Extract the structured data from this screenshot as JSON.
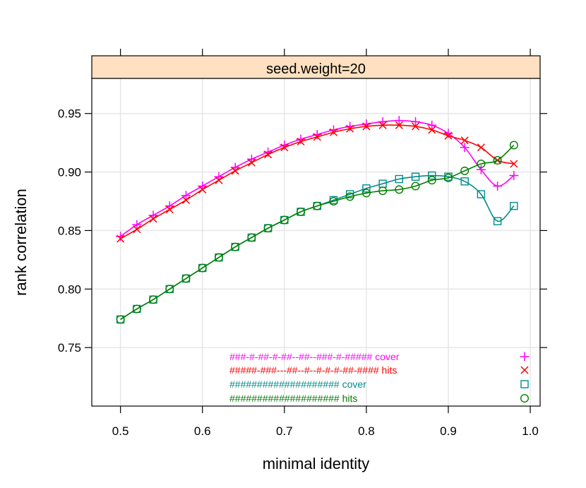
{
  "chart_data": {
    "type": "line",
    "strip_label": "seed.weight=20",
    "xlabel": "minimal identity",
    "ylabel": "rank correlation",
    "xlim": [
      0.465,
      1.012
    ],
    "ylim": [
      0.7,
      0.98
    ],
    "xticks": [
      0.5,
      0.6,
      0.7,
      0.8,
      0.9,
      1.0
    ],
    "xtick_labels": [
      "0.5",
      "0.6",
      "0.7",
      "0.8",
      "0.9",
      "1.0"
    ],
    "yticks": [
      0.75,
      0.8,
      0.85,
      0.9,
      0.95
    ],
    "ytick_labels": [
      "0.75",
      "0.80",
      "0.85",
      "0.90",
      "0.95"
    ],
    "grid": true,
    "legend_position": "bottom-right inside",
    "strip_color": "#ffe0c0",
    "x": [
      0.5,
      0.52,
      0.54,
      0.56,
      0.58,
      0.6,
      0.62,
      0.64,
      0.66,
      0.68,
      0.7,
      0.72,
      0.74,
      0.76,
      0.78,
      0.8,
      0.82,
      0.84,
      0.86,
      0.88,
      0.9,
      0.92,
      0.94,
      0.96,
      0.98
    ],
    "series": [
      {
        "name": "###-#-##-#-##--##--###-#-##### cover",
        "color": "#ff00ff",
        "marker": "plus",
        "values": [
          0.845,
          0.855,
          0.863,
          0.871,
          0.88,
          0.888,
          0.896,
          0.904,
          0.911,
          0.917,
          0.923,
          0.928,
          0.932,
          0.936,
          0.939,
          0.941,
          0.943,
          0.944,
          0.943,
          0.94,
          0.933,
          0.921,
          0.902,
          0.888,
          0.897
        ]
      },
      {
        "name": "#####-###---##--#--#-#-#-##-#### hits",
        "color": "#ff0000",
        "marker": "cross",
        "values": [
          0.843,
          0.851,
          0.86,
          0.868,
          0.876,
          0.885,
          0.893,
          0.901,
          0.908,
          0.915,
          0.921,
          0.926,
          0.93,
          0.934,
          0.937,
          0.939,
          0.94,
          0.94,
          0.939,
          0.936,
          0.931,
          0.927,
          0.921,
          0.91,
          0.907
        ]
      },
      {
        "name": "#################### cover",
        "color": "#008b8b",
        "marker": "square",
        "values": [
          0.774,
          0.783,
          0.791,
          0.8,
          0.809,
          0.818,
          0.827,
          0.836,
          0.844,
          0.852,
          0.859,
          0.866,
          0.871,
          0.876,
          0.881,
          0.886,
          0.89,
          0.894,
          0.896,
          0.897,
          0.896,
          0.892,
          0.881,
          0.858,
          0.871
        ]
      },
      {
        "name": "#################### hits",
        "color": "#008000",
        "marker": "circle",
        "values": [
          0.774,
          0.783,
          0.791,
          0.8,
          0.809,
          0.818,
          0.827,
          0.836,
          0.844,
          0.852,
          0.859,
          0.866,
          0.871,
          0.875,
          0.879,
          0.882,
          0.884,
          0.885,
          0.888,
          0.893,
          0.895,
          0.901,
          0.907,
          0.91,
          0.923
        ]
      }
    ]
  }
}
